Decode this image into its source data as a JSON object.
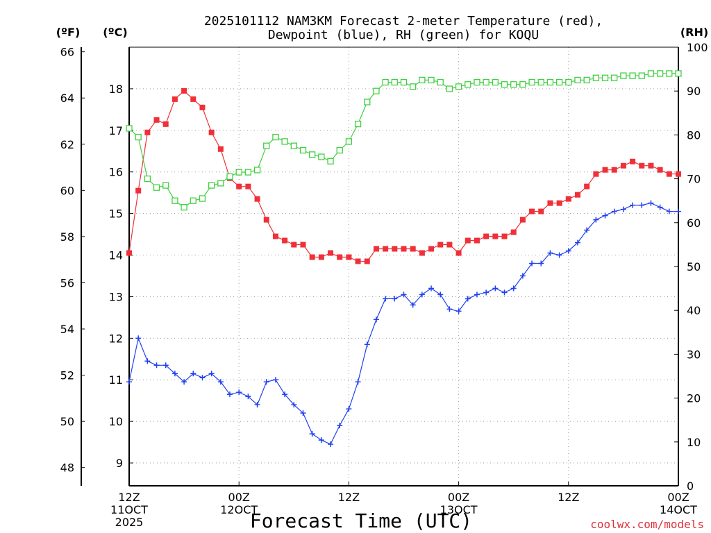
{
  "chart_data": {
    "type": "line",
    "title_line1": "2025101112 NAM3KM Forecast 2-meter Temperature (red),",
    "title_line2": "Dewpoint (blue), RH (green) for KOQU",
    "xlabel": "Forecast Time (UTC)",
    "credit": "coolwx.com/models",
    "units": {
      "fahrenheit": "(ºF)",
      "celsius": "(ºC)",
      "rh": "(RH)"
    },
    "x_ticks": [
      {
        "hour": 0,
        "line1": "12Z",
        "line2": "11OCT",
        "line3": "2025"
      },
      {
        "hour": 12,
        "line1": "00Z",
        "line2": "12OCT",
        "line3": ""
      },
      {
        "hour": 24,
        "line1": "12Z",
        "line2": "",
        "line3": ""
      },
      {
        "hour": 36,
        "line1": "00Z",
        "line2": "13OCT",
        "line3": ""
      },
      {
        "hour": 48,
        "line1": "12Z",
        "line2": "",
        "line3": ""
      },
      {
        "hour": 60,
        "line1": "00Z",
        "line2": "14OCT",
        "line3": ""
      }
    ],
    "xlim": [
      0,
      60
    ],
    "celsius_axis": {
      "ylim": [
        8.45,
        19.0
      ],
      "ticks": [
        9,
        10,
        11,
        12,
        13,
        14,
        15,
        16,
        17,
        18
      ]
    },
    "fahrenheit_axis": {
      "ylim": [
        47.21,
        66.2
      ],
      "ticks": [
        48,
        50,
        52,
        54,
        56,
        58,
        60,
        62,
        64,
        66
      ]
    },
    "rh_axis": {
      "ylim": [
        0,
        100
      ],
      "ticks": [
        0,
        10,
        20,
        30,
        40,
        50,
        60,
        70,
        80,
        90,
        100
      ]
    },
    "series": [
      {
        "name": "Temperature",
        "axis": "celsius",
        "color": "#f03038",
        "marker": "filled-square",
        "values": [
          14.05,
          15.55,
          16.95,
          17.25,
          17.15,
          17.75,
          17.95,
          17.75,
          17.55,
          16.95,
          16.55,
          15.85,
          15.65,
          15.65,
          15.35,
          14.85,
          14.45,
          14.35,
          14.25,
          14.25,
          13.95,
          13.95,
          14.05,
          13.95,
          13.95,
          13.85,
          13.85,
          14.15,
          14.15,
          14.15,
          14.15,
          14.15,
          14.05,
          14.15,
          14.25,
          14.25,
          14.05,
          14.35,
          14.35,
          14.45,
          14.45,
          14.45,
          14.55,
          14.85,
          15.05,
          15.05,
          15.25,
          15.25,
          15.35,
          15.45,
          15.65,
          15.95,
          16.05,
          16.05,
          16.15,
          16.25,
          16.15,
          16.15,
          16.05,
          15.95,
          15.95
        ]
      },
      {
        "name": "Dewpoint",
        "axis": "celsius",
        "color": "#2040f0",
        "marker": "plus",
        "values": [
          10.95,
          12.0,
          11.45,
          11.35,
          11.35,
          11.15,
          10.95,
          11.15,
          11.05,
          11.15,
          10.95,
          10.65,
          10.7,
          10.6,
          10.4,
          10.95,
          11.0,
          10.65,
          10.4,
          10.2,
          9.7,
          9.55,
          9.45,
          9.9,
          10.3,
          10.95,
          11.85,
          12.45,
          12.95,
          12.95,
          13.05,
          12.8,
          13.05,
          13.2,
          13.05,
          12.7,
          12.65,
          12.95,
          13.05,
          13.1,
          13.2,
          13.1,
          13.2,
          13.5,
          13.8,
          13.8,
          14.05,
          14.0,
          14.1,
          14.3,
          14.6,
          14.85,
          14.95,
          15.05,
          15.1,
          15.2,
          15.2,
          15.25,
          15.15,
          15.05,
          15.05
        ]
      },
      {
        "name": "RH",
        "axis": "rh",
        "color": "#40d040",
        "marker": "open-square",
        "values": [
          81.5,
          79.5,
          70.0,
          68.0,
          68.5,
          65.0,
          63.5,
          65.0,
          65.5,
          68.5,
          69.0,
          70.5,
          71.5,
          71.5,
          72.0,
          77.5,
          79.5,
          78.5,
          77.5,
          76.5,
          75.5,
          75.0,
          74.0,
          76.5,
          78.5,
          82.5,
          87.5,
          90.0,
          92.0,
          92.0,
          92.0,
          91.0,
          92.5,
          92.5,
          92.0,
          90.5,
          91.0,
          91.5,
          92.0,
          92.0,
          92.0,
          91.5,
          91.5,
          91.5,
          92.0,
          92.0,
          92.0,
          92.0,
          92.0,
          92.5,
          92.5,
          93.0,
          93.0,
          93.0,
          93.5,
          93.5,
          93.5,
          94.0,
          94.0,
          94.0,
          94.0
        ]
      }
    ]
  }
}
